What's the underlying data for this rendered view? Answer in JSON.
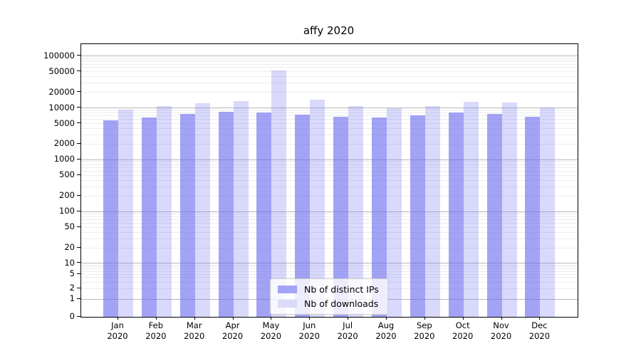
{
  "chart_data": {
    "type": "bar",
    "title": "affy 2020",
    "categories": [
      "Jan 2020",
      "Feb 2020",
      "Mar 2020",
      "Apr 2020",
      "May 2020",
      "Jun 2020",
      "Jul 2020",
      "Aug 2020",
      "Sep 2020",
      "Oct 2020",
      "Nov 2020",
      "Dec 2020"
    ],
    "months": [
      "Jan",
      "Feb",
      "Mar",
      "Apr",
      "May",
      "Jun",
      "Jul",
      "Aug",
      "Sep",
      "Oct",
      "Nov",
      "Dec"
    ],
    "year": "2020",
    "series": [
      {
        "name": "Nb of distinct IPs",
        "bar_color": "rgba(104,104,241,0.61)",
        "legend_color": "#a4a4f4",
        "values": [
          5700,
          6600,
          7600,
          8500,
          8200,
          7400,
          6700,
          6500,
          7100,
          8200,
          7700,
          6800
        ]
      },
      {
        "name": "Nb of downloads",
        "bar_color": "rgba(104,104,241,0.25)",
        "legend_color": "#dadaf9",
        "values": [
          9200,
          10800,
          12400,
          13400,
          52700,
          14500,
          11000,
          10000,
          11000,
          13000,
          12600,
          10200
        ]
      }
    ],
    "xlabel": "",
    "ylabel": "",
    "yscale": "symlog",
    "yticks": [
      0,
      1,
      2,
      5,
      10,
      20,
      50,
      100,
      200,
      500,
      1000,
      2000,
      5000,
      10000,
      20000,
      50000,
      100000
    ],
    "ylim": [
      0,
      170000
    ],
    "grid": true,
    "grid_major_color": "#b8b8b8",
    "grid_minor_color": "#ececec",
    "legend_position": "lower center"
  }
}
